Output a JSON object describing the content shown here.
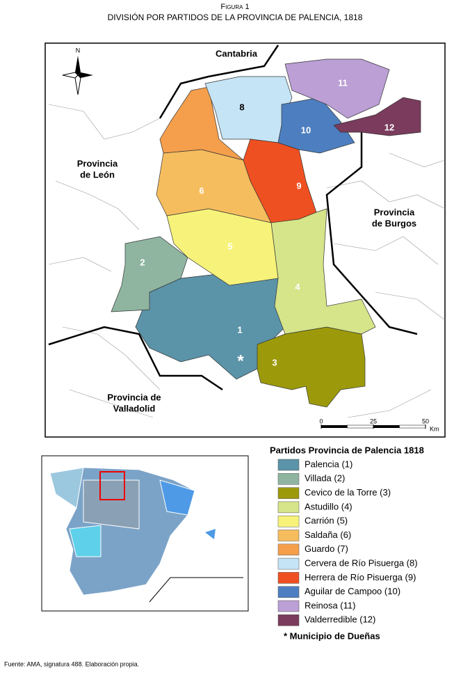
{
  "figure": {
    "label": "Figura 1",
    "title": "DIVISIÓN POR PARTIDOS DE LA PROVINCIA DE PALENCIA, 1818"
  },
  "map": {
    "north": "N",
    "neighbors": [
      {
        "lines": [
          "Cantabria"
        ]
      },
      {
        "lines": [
          "Provincia",
          "de León"
        ]
      },
      {
        "lines": [
          "Provincia",
          "de Burgos"
        ]
      },
      {
        "lines": [
          "Provincia de",
          "Valladolid"
        ]
      }
    ],
    "district_labels": [
      "1",
      "2",
      "3",
      "4",
      "5",
      "6",
      "8",
      "9",
      "10",
      "11",
      "12"
    ],
    "marker": "*",
    "scale": {
      "ticks": [
        0,
        25,
        50
      ],
      "unit": "Km"
    }
  },
  "legend": {
    "title": "Partidos Provincia de Palencia 1818",
    "items": [
      {
        "label": "Palencia (1)",
        "color": "#5b93a8"
      },
      {
        "label": "Villada (2)",
        "color": "#8fb5a0"
      },
      {
        "label": "Cevico de la Torre (3)",
        "color": "#9c9a0a"
      },
      {
        "label": "Astudillo (4)",
        "color": "#d6e48a"
      },
      {
        "label": "Carrión (5)",
        "color": "#f7f37a"
      },
      {
        "label": "Saldaña (6)",
        "color": "#f6bd5e"
      },
      {
        "label": "Guardo (7)",
        "color": "#f59f4c"
      },
      {
        "label": "Cervera de Río Pisuerga (8)",
        "color": "#c5e4f5"
      },
      {
        "label": "Herrera de Río Pisuerga (9)",
        "color": "#ef5021"
      },
      {
        "label": "Aguilar de Campoo (10)",
        "color": "#4d7fc0"
      },
      {
        "label": "Reinosa (11)",
        "color": "#bb9fd5"
      },
      {
        "label": "Valderredible (12)",
        "color": "#7a3b5c"
      }
    ],
    "note": "* Municipio de Dueñas"
  },
  "source": "Fuente: AMA, signatura 488. Elaboración propia."
}
